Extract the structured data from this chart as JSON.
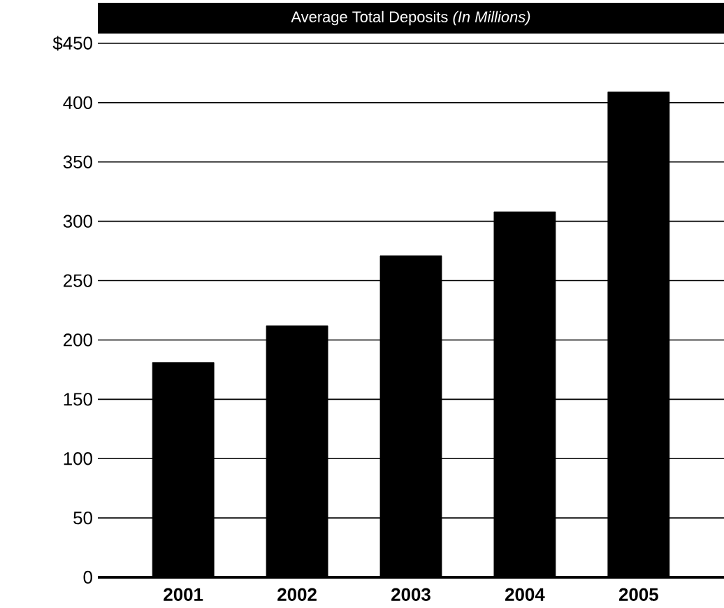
{
  "chart_data": {
    "type": "bar",
    "title": "Average Total Deposits *(In Millions)*",
    "categories": [
      "2001",
      "2002",
      "2003",
      "2004",
      "2005"
    ],
    "values": [
      181,
      212,
      271,
      308,
      409
    ],
    "color": "#000000",
    "ylim": [
      0,
      450
    ],
    "yticks": [
      0,
      50,
      100,
      150,
      200,
      250,
      300,
      350,
      400,
      {
        "value": 450,
        "label": "$450"
      }
    ],
    "grid": "y"
  }
}
